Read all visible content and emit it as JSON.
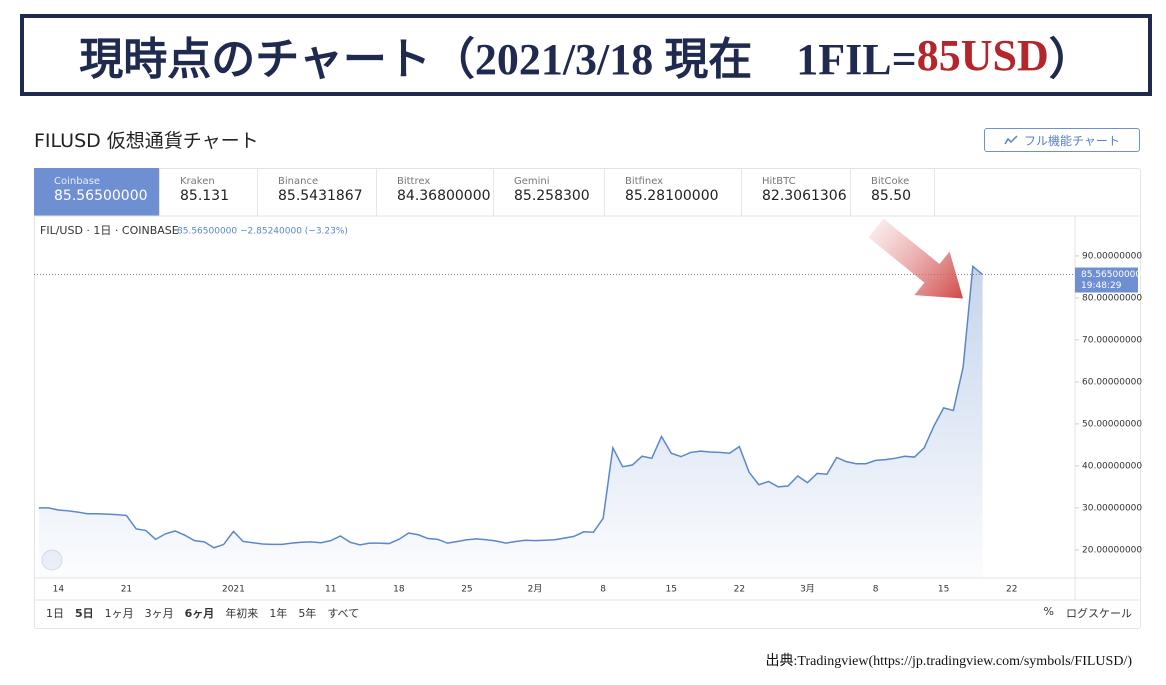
{
  "header": {
    "title_prefix": "現時点のチャート（2021/3/18 現在　1FIL=",
    "title_highlight": "85USD",
    "title_suffix": "）"
  },
  "panel": {
    "title": "FILUSD 仮想通貨チャート",
    "full_chart_button": "フル機能チャート"
  },
  "tabs": [
    {
      "name": "Coinbase",
      "price": "85.56500000"
    },
    {
      "name": "Kraken",
      "price": "85.131"
    },
    {
      "name": "Binance",
      "price": "85.5431867"
    },
    {
      "name": "Bittrex",
      "price": "84.36800000"
    },
    {
      "name": "Gemini",
      "price": "85.258300"
    },
    {
      "name": "Bitfinex",
      "price": "85.28100000"
    },
    {
      "name": "HitBTC",
      "price": "82.3061306"
    },
    {
      "name": "BitCoke",
      "price": "85.50"
    }
  ],
  "chart_data": {
    "type": "area",
    "symbol_info": "FIL/USD · 1日 · COINBASE",
    "quote_info": "85.56500000 −2.85240000 (−3.23%)",
    "price_label": "85.56500000",
    "time_label": "19:48:29",
    "color": "#5b87c9",
    "categories": [
      null,
      null,
      "14",
      null,
      null,
      null,
      null,
      null,
      null,
      "21",
      null,
      null,
      null,
      null,
      null,
      null,
      null,
      null,
      null,
      null,
      "2021",
      null,
      null,
      null,
      null,
      null,
      null,
      null,
      null,
      null,
      "11",
      null,
      null,
      null,
      null,
      null,
      null,
      "18",
      null,
      null,
      null,
      null,
      null,
      null,
      "25",
      null,
      null,
      null,
      null,
      null,
      null,
      "2月",
      null,
      null,
      null,
      null,
      null,
      null,
      "8",
      null,
      null,
      null,
      null,
      null,
      null,
      "15",
      null,
      null,
      null,
      null,
      null,
      null,
      "22",
      null,
      null,
      null,
      null,
      null,
      null,
      "3月",
      null,
      null,
      null,
      null,
      null,
      null,
      "8",
      null,
      null,
      null,
      null,
      null,
      null,
      "15",
      null,
      null,
      null,
      null,
      null,
      null,
      "22",
      null,
      null,
      null,
      null,
      null,
      null
    ],
    "values": [
      30.0,
      30.0,
      29.5,
      29.3,
      29.0,
      28.6,
      28.6,
      28.5,
      28.4,
      28.2,
      25.0,
      24.6,
      22.5,
      23.8,
      24.5,
      23.5,
      22.2,
      21.9,
      20.5,
      21.3,
      24.4,
      22.0,
      21.7,
      21.4,
      21.3,
      21.3,
      21.6,
      21.8,
      21.9,
      21.7,
      22.2,
      23.3,
      21.8,
      21.2,
      21.6,
      21.6,
      21.5,
      22.5,
      24.0,
      23.6,
      22.7,
      22.5,
      21.6,
      22.0,
      22.4,
      22.6,
      22.4,
      22.1,
      21.6,
      22.0,
      22.3,
      22.2,
      22.3,
      22.4,
      22.8,
      23.2,
      24.3,
      24.2,
      27.5,
      44.3,
      39.8,
      40.2,
      42.3,
      41.8,
      47.0,
      43.0,
      42.2,
      43.2,
      43.5,
      43.3,
      43.2,
      43.0,
      44.6,
      38.5,
      35.5,
      36.3,
      35.0,
      35.2,
      37.6,
      36.0,
      38.2,
      38.0,
      42.0,
      41.0,
      40.5,
      40.5,
      41.3,
      41.5,
      41.8,
      42.3,
      42.1,
      44.3,
      49.5,
      53.8,
      53.2,
      63.5,
      87.5,
      85.565,
      null,
      null,
      null,
      null,
      null,
      null,
      null,
      null,
      null
    ],
    "ylim": [
      13.3,
      99.5
    ],
    "yticks": [
      {
        "value": 20,
        "label": "20.00000000"
      },
      {
        "value": 30,
        "label": "30.00000000"
      },
      {
        "value": 40,
        "label": "40.00000000"
      },
      {
        "value": 50,
        "label": "50.00000000"
      },
      {
        "value": 60,
        "label": "60.00000000"
      },
      {
        "value": 70,
        "label": "70.00000000"
      },
      {
        "value": 80,
        "label": "80.00000000"
      },
      {
        "value": 90,
        "label": "90.00000000"
      }
    ],
    "grid": false
  },
  "toolbar": {
    "ranges": [
      "1日",
      "5日",
      "1ヶ月",
      "3ヶ月",
      "6ヶ月",
      "年初来",
      "1年",
      "5年",
      "すべて"
    ],
    "percent": "%",
    "log_scale": "ログスケール"
  },
  "source": "出典:Tradingview(https://jp.tradingview.com/symbols/FILUSD/)"
}
